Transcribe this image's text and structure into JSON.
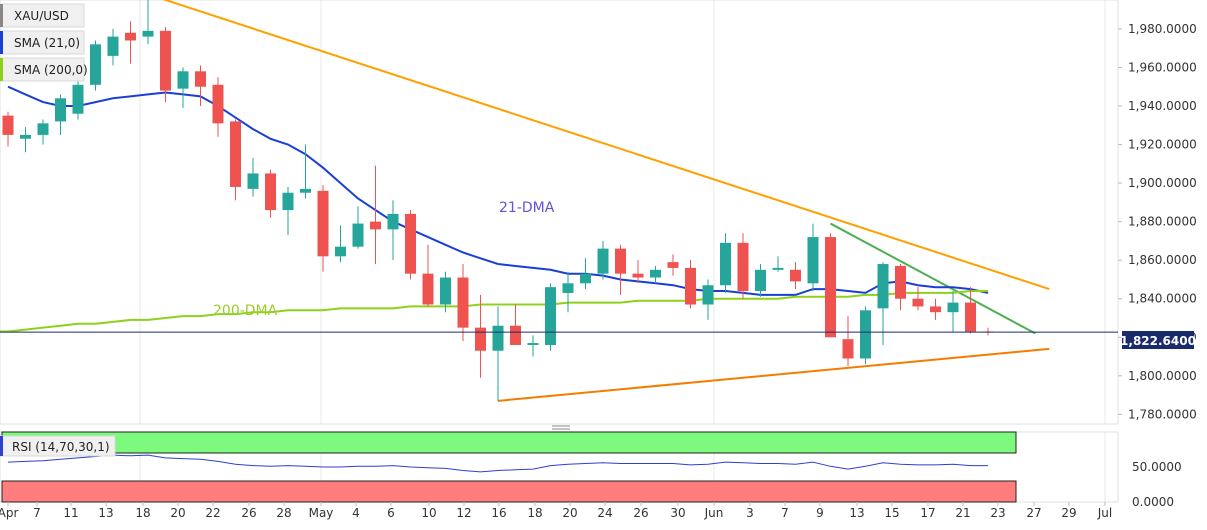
{
  "symbol": "XAU/USD",
  "indicators": {
    "sma21_label": "SMA (21,0)",
    "sma200_label": "SMA (200,0)",
    "rsi_label": "RSI (14,70,30,1)"
  },
  "annotations": {
    "dma21": "21-DMA",
    "dma200": "200-DMA"
  },
  "last_price": "1,822.6400",
  "colors": {
    "up": "#26a69a",
    "down": "#ef5350",
    "sma21": "#1a3fd6",
    "sma200": "#8fd11a",
    "resistance": "#ffa000",
    "support": "#f57c00",
    "short_resistance": "#4caf50",
    "rsi_line": "#2f3fd1",
    "rsi_overbought_band": "#7dfa7d",
    "rsi_oversold_band": "#ff7d7d"
  },
  "chart_data": [
    {
      "type": "candlestick",
      "title": "XAU/USD",
      "y_ticks": [
        "1,980.0000",
        "1,960.0000",
        "1,940.0000",
        "1,920.0000",
        "1,900.0000",
        "1,880.0000",
        "1,860.0000",
        "1,840.0000",
        "1,820.0000",
        "1,800.0000",
        "1,780.0000"
      ],
      "ylim": [
        1775,
        1995
      ],
      "x_ticks": [
        "Apr",
        "7",
        "11",
        "13",
        "18",
        "20",
        "22",
        "26",
        "28",
        "May",
        "4",
        "6",
        "10",
        "12",
        "16",
        "18",
        "20",
        "24",
        "26",
        "30",
        "Jun",
        "3",
        "7",
        "9",
        "13",
        "15",
        "17",
        "21",
        "23",
        "27",
        "29",
        "Jul"
      ],
      "candles": [
        {
          "o": 1935,
          "h": 1937,
          "l": 1919,
          "c": 1925
        },
        {
          "o": 1923,
          "h": 1929,
          "l": 1916,
          "c": 1925
        },
        {
          "o": 1925,
          "h": 1933,
          "l": 1920,
          "c": 1931
        },
        {
          "o": 1932,
          "h": 1946,
          "l": 1925,
          "c": 1944
        },
        {
          "o": 1936,
          "h": 1957,
          "l": 1933,
          "c": 1951
        },
        {
          "o": 1951,
          "h": 1974,
          "l": 1948,
          "c": 1972
        },
        {
          "o": 1966,
          "h": 1980,
          "l": 1961,
          "c": 1976
        },
        {
          "o": 1978,
          "h": 1984,
          "l": 1962,
          "c": 1974
        },
        {
          "o": 1976,
          "h": 1998,
          "l": 1972,
          "c": 1979
        },
        {
          "o": 1979,
          "h": 1981,
          "l": 1942,
          "c": 1948
        },
        {
          "o": 1949,
          "h": 1960,
          "l": 1939,
          "c": 1958
        },
        {
          "o": 1958,
          "h": 1961,
          "l": 1940,
          "c": 1950
        },
        {
          "o": 1951,
          "h": 1955,
          "l": 1924,
          "c": 1931
        },
        {
          "o": 1932,
          "h": 1933,
          "l": 1891,
          "c": 1898
        },
        {
          "o": 1897,
          "h": 1913,
          "l": 1893,
          "c": 1905
        },
        {
          "o": 1905,
          "h": 1907,
          "l": 1882,
          "c": 1886
        },
        {
          "o": 1886,
          "h": 1898,
          "l": 1873,
          "c": 1895
        },
        {
          "o": 1895,
          "h": 1920,
          "l": 1892,
          "c": 1897
        },
        {
          "o": 1896,
          "h": 1899,
          "l": 1854,
          "c": 1862
        },
        {
          "o": 1862,
          "h": 1878,
          "l": 1859,
          "c": 1867
        },
        {
          "o": 1867,
          "h": 1888,
          "l": 1866,
          "c": 1879
        },
        {
          "o": 1880,
          "h": 1909,
          "l": 1858,
          "c": 1876
        },
        {
          "o": 1876,
          "h": 1891,
          "l": 1860,
          "c": 1884
        },
        {
          "o": 1884,
          "h": 1886,
          "l": 1850,
          "c": 1853
        },
        {
          "o": 1853,
          "h": 1868,
          "l": 1836,
          "c": 1837
        },
        {
          "o": 1837,
          "h": 1854,
          "l": 1833,
          "c": 1851
        },
        {
          "o": 1851,
          "h": 1858,
          "l": 1818,
          "c": 1825
        },
        {
          "o": 1825,
          "h": 1842,
          "l": 1799,
          "c": 1813
        },
        {
          "o": 1813,
          "h": 1836,
          "l": 1787,
          "c": 1826
        },
        {
          "o": 1826,
          "h": 1837,
          "l": 1817,
          "c": 1816
        },
        {
          "o": 1816,
          "h": 1821,
          "l": 1810,
          "c": 1817
        },
        {
          "o": 1816,
          "h": 1848,
          "l": 1813,
          "c": 1846
        },
        {
          "o": 1843,
          "h": 1854,
          "l": 1833,
          "c": 1848
        },
        {
          "o": 1848,
          "h": 1861,
          "l": 1845,
          "c": 1853
        },
        {
          "o": 1853,
          "h": 1870,
          "l": 1850,
          "c": 1866
        },
        {
          "o": 1866,
          "h": 1868,
          "l": 1842,
          "c": 1853
        },
        {
          "o": 1853,
          "h": 1860,
          "l": 1848,
          "c": 1851
        },
        {
          "o": 1851,
          "h": 1857,
          "l": 1848,
          "c": 1855
        },
        {
          "o": 1859,
          "h": 1863,
          "l": 1852,
          "c": 1856
        },
        {
          "o": 1856,
          "h": 1860,
          "l": 1835,
          "c": 1837
        },
        {
          "o": 1837,
          "h": 1850,
          "l": 1829,
          "c": 1847
        },
        {
          "o": 1847,
          "h": 1874,
          "l": 1843,
          "c": 1869
        },
        {
          "o": 1869,
          "h": 1874,
          "l": 1840,
          "c": 1844
        },
        {
          "o": 1844,
          "h": 1858,
          "l": 1841,
          "c": 1855
        },
        {
          "o": 1855,
          "h": 1862,
          "l": 1854,
          "c": 1856
        },
        {
          "o": 1855,
          "h": 1859,
          "l": 1845,
          "c": 1849
        },
        {
          "o": 1848,
          "h": 1879,
          "l": 1844,
          "c": 1872
        },
        {
          "o": 1872,
          "h": 1874,
          "l": 1820,
          "c": 1820
        },
        {
          "o": 1819,
          "h": 1831,
          "l": 1805,
          "c": 1809
        },
        {
          "o": 1809,
          "h": 1836,
          "l": 1806,
          "c": 1834
        },
        {
          "o": 1835,
          "h": 1859,
          "l": 1816,
          "c": 1858
        },
        {
          "o": 1857,
          "h": 1858,
          "l": 1834,
          "c": 1840
        },
        {
          "o": 1840,
          "h": 1846,
          "l": 1834,
          "c": 1836
        },
        {
          "o": 1836,
          "h": 1840,
          "l": 1829,
          "c": 1833
        },
        {
          "o": 1833,
          "h": 1844,
          "l": 1823,
          "c": 1838
        },
        {
          "o": 1838,
          "h": 1846,
          "l": 1822,
          "c": 1823
        },
        {
          "o": 1823,
          "h": 1825,
          "l": 1821,
          "c": 1822.64
        }
      ],
      "series": [
        {
          "name": "SMA (21,0)",
          "values": [
            1950,
            1946,
            1942,
            1940,
            1940,
            1942,
            1944,
            1945,
            1946,
            1947,
            1946,
            1945,
            1940,
            1934,
            1928,
            1923,
            1920,
            1915,
            1908,
            1900,
            1892,
            1886,
            1880,
            1876,
            1872,
            1868,
            1864,
            1861,
            1858,
            1857,
            1856,
            1855,
            1853,
            1853,
            1852,
            1850,
            1849,
            1848,
            1847,
            1845,
            1844,
            1844,
            1843,
            1842,
            1842,
            1842,
            1845,
            1845,
            1844,
            1843,
            1848,
            1849,
            1847,
            1846,
            1846,
            1845,
            1843
          ]
        },
        {
          "name": "SMA (200,0)",
          "values": [
            1823,
            1824,
            1825,
            1826,
            1827,
            1827,
            1828,
            1829,
            1829,
            1830,
            1831,
            1831,
            1832,
            1832,
            1833,
            1833,
            1834,
            1834,
            1834,
            1835,
            1835,
            1835,
            1835,
            1836,
            1836,
            1836,
            1836,
            1837,
            1837,
            1837,
            1837,
            1837,
            1838,
            1838,
            1838,
            1838,
            1839,
            1839,
            1839,
            1839,
            1840,
            1840,
            1840,
            1840,
            1840,
            1841,
            1841,
            1841,
            1841,
            1842,
            1842,
            1843,
            1843,
            1843,
            1843,
            1844,
            1844
          ]
        }
      ],
      "trend_lines": [
        {
          "name": "resistance",
          "points": [
            [
              8,
              1998
            ],
            [
              59.5,
              1845
            ]
          ]
        },
        {
          "name": "support",
          "points": [
            [
              28,
              1787
            ],
            [
              59.5,
              1814
            ]
          ]
        },
        {
          "name": "short_resistance",
          "points": [
            [
              47,
              1879
            ],
            [
              58.7,
              1822
            ]
          ]
        }
      ],
      "last_value": 1822.64
    },
    {
      "type": "line",
      "title": "RSI (14,70,30,1)",
      "y_ticks": [
        "50.0000",
        "0.0000"
      ],
      "ylim": [
        0,
        100
      ],
      "bands": [
        {
          "from": 70,
          "to": 100
        },
        {
          "from": 0,
          "to": 30
        }
      ],
      "values": [
        57,
        58,
        59,
        61,
        63,
        65,
        67,
        66,
        67,
        63,
        62,
        61,
        58,
        54,
        52,
        51,
        52,
        51,
        50,
        50,
        51,
        51,
        52,
        50,
        49,
        48,
        45,
        43,
        45,
        46,
        47,
        52,
        54,
        55,
        56,
        55,
        55,
        55,
        55,
        53,
        54,
        57,
        56,
        55,
        55,
        54,
        57,
        51,
        47,
        51,
        56,
        54,
        53,
        53,
        54,
        52,
        52
      ]
    }
  ]
}
